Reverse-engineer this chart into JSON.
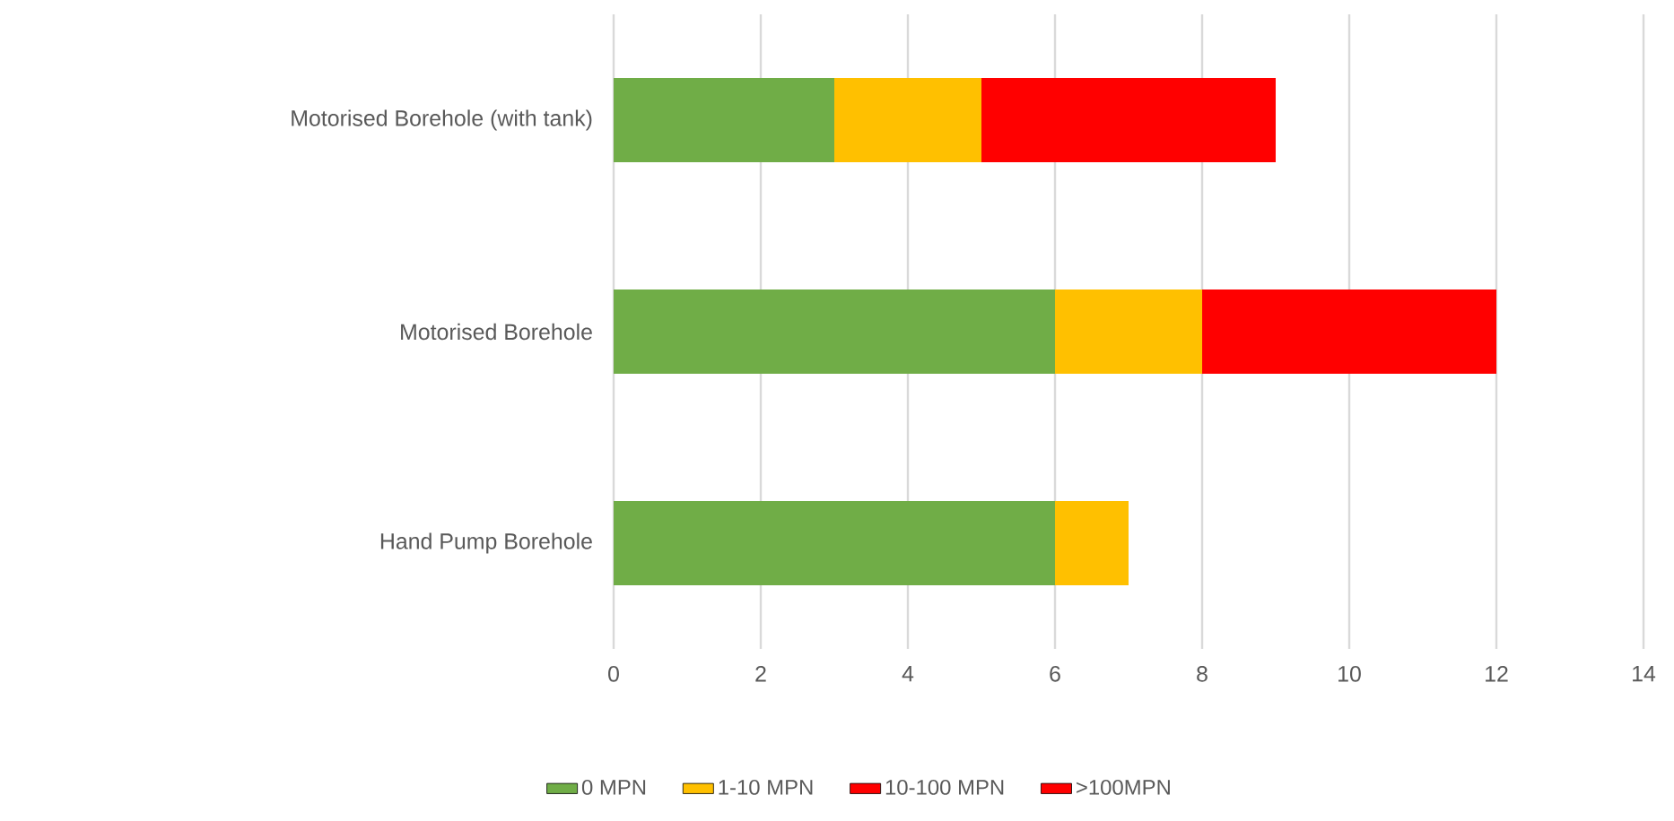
{
  "chart_data": {
    "type": "bar",
    "orientation": "horizontal",
    "stacked": true,
    "categories": [
      "Motorised Borehole (with tank)",
      "Motorised Borehole",
      "Hand Pump Borehole"
    ],
    "series": [
      {
        "name": "0 MPN",
        "color": "#70ad47",
        "values": [
          3,
          6,
          6
        ]
      },
      {
        "name": "1-10 MPN",
        "color": "#ffc000",
        "values": [
          2,
          2,
          1
        ]
      },
      {
        "name": "10-100 MPN",
        "color": "#ff0000",
        "values": [
          4,
          4,
          0
        ]
      },
      {
        "name": ">100MPN",
        "color": "#ff0000",
        "values": [
          0,
          0,
          0
        ]
      }
    ],
    "xlim": [
      0,
      14
    ],
    "xticks": [
      0,
      2,
      4,
      6,
      8,
      10,
      12,
      14
    ],
    "grid": "x",
    "legend": "bottom"
  }
}
